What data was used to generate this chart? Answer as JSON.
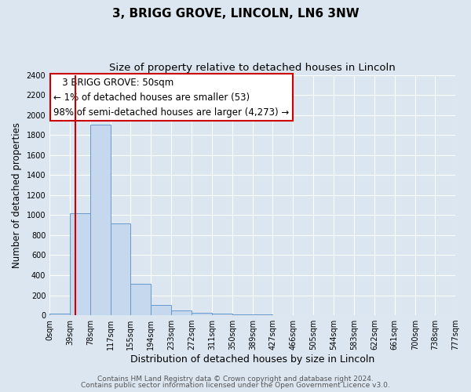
{
  "title": "3, BRIGG GROVE, LINCOLN, LN6 3NW",
  "subtitle": "Size of property relative to detached houses in Lincoln",
  "xlabel": "Distribution of detached houses by size in Lincoln",
  "ylabel": "Number of detached properties",
  "footer_line1": "Contains HM Land Registry data © Crown copyright and database right 2024.",
  "footer_line2": "Contains public sector information licensed under the Open Government Licence v3.0.",
  "annotation_line1": "3 BRIGG GROVE: 50sqm",
  "annotation_line2": "← 1% of detached houses are smaller (53)",
  "annotation_line3": "98% of semi-detached houses are larger (4,273) →",
  "bin_edges": [
    0,
    39,
    78,
    117,
    155,
    194,
    233,
    272,
    311,
    350,
    389,
    427,
    466,
    505,
    544,
    583,
    622,
    661,
    700,
    738,
    777
  ],
  "bin_heights": [
    20,
    1020,
    1900,
    920,
    315,
    105,
    50,
    28,
    20,
    12,
    10,
    0,
    0,
    0,
    0,
    0,
    0,
    0,
    0,
    0
  ],
  "bar_color": "#c5d8ee",
  "bar_edge_color": "#6699cc",
  "property_line_x": 50,
  "property_line_color": "#cc0000",
  "ylim_max": 2400,
  "yticks": [
    0,
    200,
    400,
    600,
    800,
    1000,
    1200,
    1400,
    1600,
    1800,
    2000,
    2200,
    2400
  ],
  "fig_bg_color": "#dce6f0",
  "plot_bg_color": "#dce6f0",
  "grid_color": "#ffffff",
  "annotation_box_facecolor": "#ffffff",
  "annotation_box_edgecolor": "#cc0000",
  "title_fontsize": 11,
  "subtitle_fontsize": 9.5,
  "xlabel_fontsize": 9,
  "ylabel_fontsize": 8.5,
  "tick_fontsize": 7,
  "annotation_fontsize": 8.5,
  "footer_fontsize": 6.5
}
